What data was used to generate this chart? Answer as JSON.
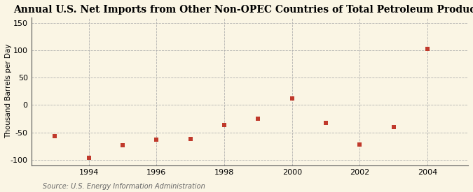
{
  "title": "Annual U.S. Net Imports from Other Non-OPEC Countries of Total Petroleum Products",
  "ylabel": "Thousand Barrels per Day",
  "source": "Source: U.S. Energy Information Administration",
  "years": [
    1993,
    1994,
    1995,
    1996,
    1997,
    1998,
    1999,
    2000,
    2001,
    2002,
    2003,
    2004
  ],
  "values": [
    -57,
    -96,
    -74,
    -63,
    -62,
    -36,
    -25,
    12,
    -32,
    -72,
    -40,
    103
  ],
  "xlim": [
    1992.3,
    2005.2
  ],
  "ylim": [
    -110,
    160
  ],
  "yticks": [
    -100,
    -50,
    0,
    50,
    100,
    150
  ],
  "xticks": [
    1994,
    1996,
    1998,
    2000,
    2002,
    2004
  ],
  "marker_color": "#c0392b",
  "marker_size": 16,
  "background_color": "#faf5e4",
  "grid_color": "#aaaaaa",
  "title_fontsize": 10,
  "label_fontsize": 7.5,
  "tick_fontsize": 8,
  "source_fontsize": 7
}
